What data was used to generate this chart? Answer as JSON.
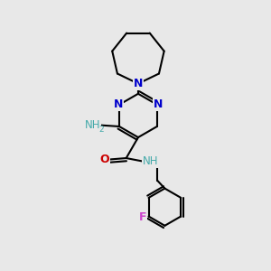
{
  "background_color": "#e8e8e8",
  "atom_color_N": "#0000cc",
  "atom_color_O": "#cc0000",
  "atom_color_F": "#cc44cc",
  "atom_color_NH": "#44aaaa",
  "atom_color_C": "#000000",
  "bond_color": "#000000",
  "line_width": 1.5,
  "fig_size": [
    3.0,
    3.0
  ],
  "dpi": 100,
  "xlim": [
    0,
    10
  ],
  "ylim": [
    0,
    10
  ]
}
